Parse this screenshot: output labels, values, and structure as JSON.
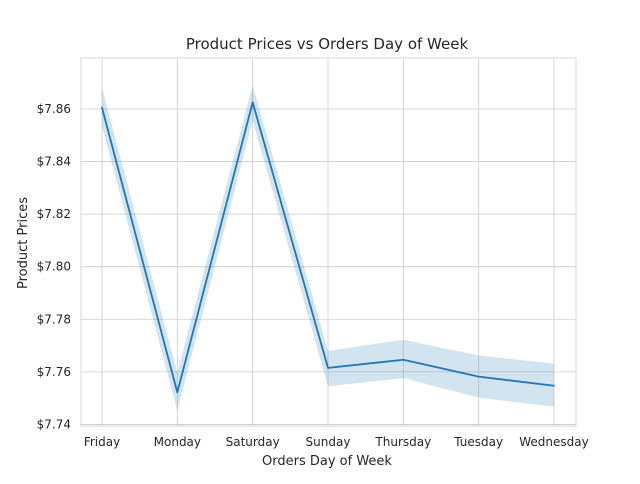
{
  "chart_data": {
    "type": "line",
    "title": "Product Prices vs Orders Day of Week",
    "xlabel": "Orders Day of Week",
    "ylabel": "Product Prices",
    "categories": [
      "Friday",
      "Monday",
      "Saturday",
      "Sunday",
      "Thursday",
      "Tuesday",
      "Wednesday"
    ],
    "series": [
      {
        "values": [
          7.8605,
          7.7522,
          7.8625,
          7.7615,
          7.7646,
          7.7582,
          7.7547
        ],
        "ci_lower": [
          7.8535,
          7.7452,
          7.8555,
          7.7545,
          7.7576,
          7.7502,
          7.7467
        ],
        "ci_upper": [
          7.868,
          7.7597,
          7.869,
          7.768,
          7.7722,
          7.7662,
          7.7632
        ]
      }
    ],
    "yticks": [
      7.74,
      7.76,
      7.78,
      7.8,
      7.82,
      7.84,
      7.86
    ],
    "ytick_labels": [
      "$7.74",
      "$7.76",
      "$7.78",
      "$7.80",
      "$7.82",
      "$7.84",
      "$7.86"
    ],
    "ylim": [
      7.7394,
      7.8794
    ],
    "grid": true,
    "legend": "none",
    "colors": {
      "line": "#1f77b4",
      "band": "#1f77b4",
      "grid": "#cccccc",
      "text": "#262626"
    }
  }
}
